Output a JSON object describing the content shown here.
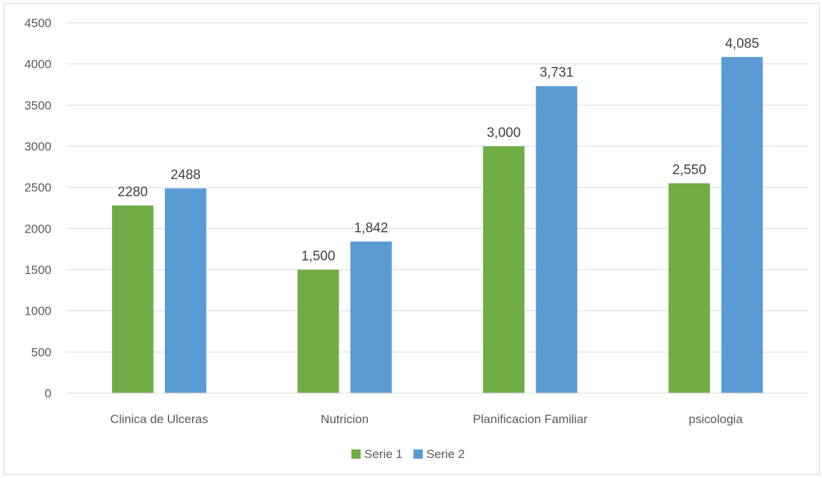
{
  "chart_data": {
    "type": "bar",
    "title": "",
    "xlabel": "",
    "ylabel": "",
    "ylim": [
      0,
      4500
    ],
    "yticks": [
      0,
      500,
      1000,
      1500,
      2000,
      2500,
      3000,
      3500,
      4000,
      4500
    ],
    "ytick_labels": [
      "0",
      "500",
      "1000",
      "1500",
      "2000",
      "2500",
      "3000",
      "3500",
      "4000",
      "4500"
    ],
    "grid": true,
    "legend_position": "bottom",
    "categories": [
      "Clinica de Ulceras",
      "Nutricion",
      "Planificacion Familiar",
      "psicologia"
    ],
    "series": [
      {
        "name": "Serie 1",
        "color": "#70ad47",
        "values": [
          2280,
          1500,
          3000,
          2550
        ],
        "data_labels": [
          "2280",
          "1,500",
          "3,000",
          "2,550"
        ]
      },
      {
        "name": "Serie 2",
        "color": "#5b9bd5",
        "values": [
          2488,
          1842,
          3731,
          4085
        ],
        "data_labels": [
          "2488",
          "1,842",
          "3,731",
          "4,085"
        ]
      }
    ]
  }
}
